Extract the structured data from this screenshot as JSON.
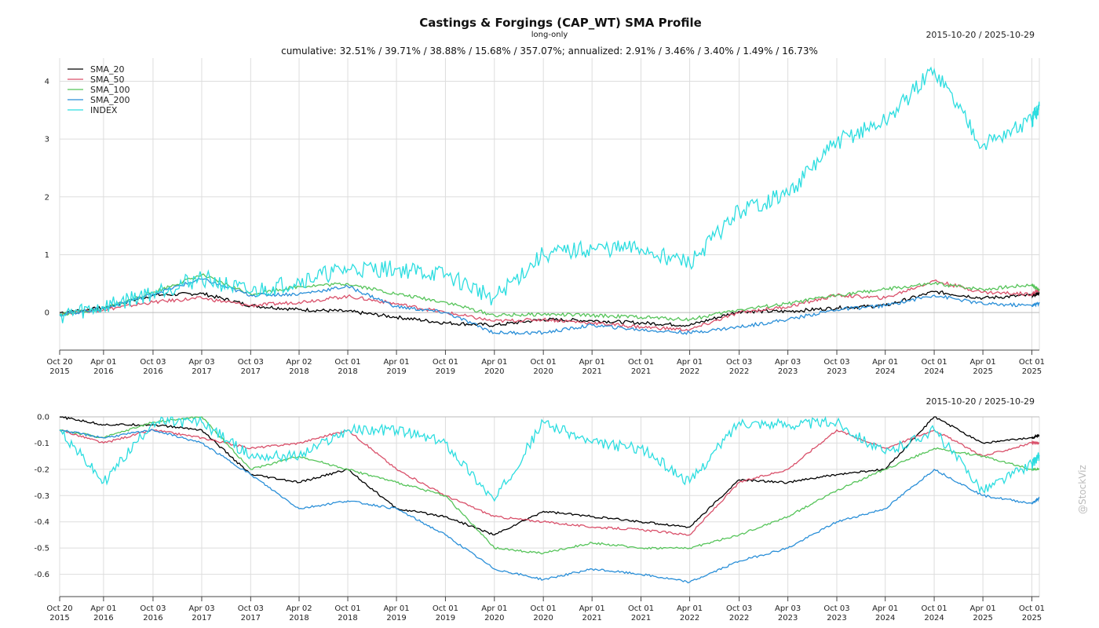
{
  "header": {
    "title": "Castings & Forgings (CAP_WT) SMA Profile",
    "subtitle": "long-only",
    "date_range": "2015-10-20 / 2025-10-29",
    "stats": "cumulative: 32.51% / 39.71% / 38.88% / 15.68% / 357.07%; annualized: 2.91% / 3.46% / 3.40% / 1.49% / 16.73%"
  },
  "watermark": "@StockViz",
  "colors": {
    "SMA_20": "#000000",
    "SMA_50": "#d9506a",
    "SMA_100": "#56c45a",
    "SMA_200": "#2a8fd8",
    "INDEX": "#2cdde0",
    "grid": "#dddddd"
  },
  "chart_data": [
    {
      "type": "line",
      "title": "Castings & Forgings (CAP_WT) SMA Profile",
      "subtitle": "long-only",
      "legend": "top-left",
      "grid": true,
      "x": [
        "2015-10-20",
        "2016-04-01",
        "2016-10-03",
        "2017-04-03",
        "2017-10-03",
        "2018-04-02",
        "2018-10-01",
        "2019-04-01",
        "2019-10-01",
        "2020-04-01",
        "2020-10-01",
        "2021-04-01",
        "2021-10-01",
        "2022-04-01",
        "2022-10-03",
        "2023-04-03",
        "2023-10-03",
        "2024-04-01",
        "2024-10-01",
        "2025-04-01",
        "2025-10-01",
        "2025-10-29"
      ],
      "x_ticks": [
        {
          "date": "Oct 20",
          "year": "2015"
        },
        {
          "date": "Apr 01",
          "year": "2016"
        },
        {
          "date": "Oct 03",
          "year": "2016"
        },
        {
          "date": "Apr 03",
          "year": "2017"
        },
        {
          "date": "Oct 03",
          "year": "2017"
        },
        {
          "date": "Apr 02",
          "year": "2018"
        },
        {
          "date": "Oct 01",
          "year": "2018"
        },
        {
          "date": "Apr 01",
          "year": "2019"
        },
        {
          "date": "Oct 01",
          "year": "2019"
        },
        {
          "date": "Apr 01",
          "year": "2020"
        },
        {
          "date": "Oct 01",
          "year": "2020"
        },
        {
          "date": "Apr 01",
          "year": "2021"
        },
        {
          "date": "Oct 01",
          "year": "2021"
        },
        {
          "date": "Apr 01",
          "year": "2022"
        },
        {
          "date": "Oct 03",
          "year": "2022"
        },
        {
          "date": "Apr 03",
          "year": "2023"
        },
        {
          "date": "Oct 03",
          "year": "2023"
        },
        {
          "date": "Apr 01",
          "year": "2024"
        },
        {
          "date": "Oct 01",
          "year": "2024"
        },
        {
          "date": "Apr 01",
          "year": "2025"
        },
        {
          "date": "Oct 01",
          "year": "2025"
        }
      ],
      "y_ticks": [
        "0",
        "1",
        "2",
        "3",
        "4"
      ],
      "ylim": [
        -0.65,
        4.4
      ],
      "series": [
        {
          "name": "SMA_20",
          "values": [
            0.0,
            0.08,
            0.3,
            0.33,
            0.12,
            0.05,
            0.02,
            -0.08,
            -0.18,
            -0.22,
            -0.12,
            -0.14,
            -0.18,
            -0.22,
            0.02,
            0.02,
            0.08,
            0.12,
            0.36,
            0.25,
            0.3,
            0.33
          ]
        },
        {
          "name": "SMA_50",
          "values": [
            -0.02,
            0.05,
            0.18,
            0.25,
            0.12,
            0.18,
            0.28,
            0.15,
            0.0,
            -0.15,
            -0.12,
            -0.18,
            -0.25,
            -0.3,
            0.0,
            0.1,
            0.3,
            0.25,
            0.55,
            0.35,
            0.32,
            0.4
          ]
        },
        {
          "name": "SMA_100",
          "values": [
            -0.03,
            0.06,
            0.35,
            0.65,
            0.32,
            0.45,
            0.5,
            0.32,
            0.18,
            -0.05,
            -0.03,
            -0.05,
            -0.08,
            -0.12,
            0.05,
            0.15,
            0.3,
            0.4,
            0.5,
            0.4,
            0.48,
            0.39
          ]
        },
        {
          "name": "SMA_200",
          "values": [
            -0.04,
            0.07,
            0.32,
            0.58,
            0.3,
            0.32,
            0.45,
            0.1,
            0.0,
            -0.35,
            -0.35,
            -0.22,
            -0.3,
            -0.35,
            -0.25,
            -0.12,
            0.05,
            0.12,
            0.3,
            0.15,
            0.12,
            0.16
          ]
        },
        {
          "name": "INDEX",
          "values": [
            -0.05,
            0.1,
            0.35,
            0.6,
            0.35,
            0.55,
            0.75,
            0.75,
            0.65,
            0.25,
            1.0,
            1.1,
            1.1,
            0.85,
            1.75,
            2.05,
            2.95,
            3.3,
            4.2,
            2.9,
            3.3,
            3.57
          ]
        }
      ]
    },
    {
      "type": "line",
      "grid": true,
      "x": [
        "2015-10-20",
        "2016-04-01",
        "2016-10-03",
        "2017-04-03",
        "2017-10-03",
        "2018-04-02",
        "2018-10-01",
        "2019-04-01",
        "2019-10-01",
        "2020-04-01",
        "2020-10-01",
        "2021-04-01",
        "2021-10-01",
        "2022-04-01",
        "2022-10-03",
        "2023-04-03",
        "2023-10-03",
        "2024-04-01",
        "2024-10-01",
        "2025-04-01",
        "2025-10-01",
        "2025-10-29"
      ],
      "y_ticks": [
        "0.0",
        "-0.1",
        "-0.2",
        "-0.3",
        "-0.4",
        "-0.5",
        "-0.6"
      ],
      "ylim": [
        -0.685,
        0.0
      ],
      "series": [
        {
          "name": "SMA_20",
          "values": [
            0.0,
            -0.03,
            -0.03,
            -0.05,
            -0.22,
            -0.25,
            -0.2,
            -0.35,
            -0.38,
            -0.45,
            -0.36,
            -0.38,
            -0.4,
            -0.42,
            -0.24,
            -0.25,
            -0.22,
            -0.2,
            0.0,
            -0.1,
            -0.08,
            -0.07
          ]
        },
        {
          "name": "SMA_50",
          "values": [
            -0.05,
            -0.1,
            -0.05,
            -0.08,
            -0.12,
            -0.1,
            -0.05,
            -0.2,
            -0.3,
            -0.38,
            -0.4,
            -0.42,
            -0.43,
            -0.45,
            -0.25,
            -0.2,
            -0.05,
            -0.12,
            -0.05,
            -0.15,
            -0.1,
            -0.1
          ]
        },
        {
          "name": "SMA_100",
          "values": [
            -0.05,
            -0.08,
            -0.02,
            0.0,
            -0.2,
            -0.15,
            -0.2,
            -0.25,
            -0.3,
            -0.5,
            -0.52,
            -0.48,
            -0.5,
            -0.5,
            -0.45,
            -0.38,
            -0.28,
            -0.2,
            -0.12,
            -0.15,
            -0.2,
            -0.2
          ]
        },
        {
          "name": "SMA_200",
          "values": [
            -0.05,
            -0.08,
            -0.05,
            -0.1,
            -0.22,
            -0.35,
            -0.32,
            -0.35,
            -0.45,
            -0.58,
            -0.62,
            -0.58,
            -0.6,
            -0.63,
            -0.55,
            -0.5,
            -0.4,
            -0.35,
            -0.2,
            -0.3,
            -0.33,
            -0.31
          ]
        },
        {
          "name": "INDEX",
          "values": [
            -0.05,
            -0.25,
            -0.02,
            -0.02,
            -0.15,
            -0.15,
            -0.05,
            -0.05,
            -0.1,
            -0.32,
            -0.02,
            -0.1,
            -0.12,
            -0.25,
            -0.02,
            -0.03,
            -0.02,
            -0.14,
            -0.05,
            -0.28,
            -0.18,
            -0.15
          ]
        }
      ]
    }
  ]
}
